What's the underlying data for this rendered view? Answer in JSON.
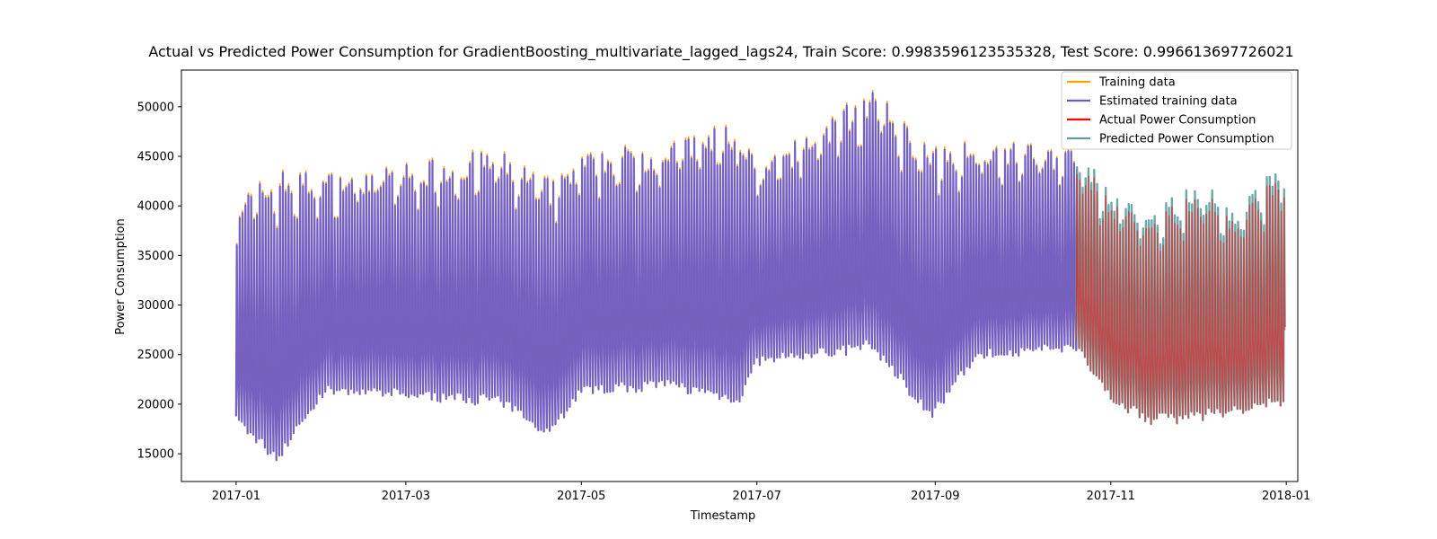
{
  "chart_data": {
    "type": "line",
    "title": "Actual vs Predicted Power Consumption for GradientBoosting_multivariate_lagged_lags24, Train Score: 0.9983596123535328, Test Score: 0.996613697726021",
    "xlabel": "Timestamp",
    "ylabel": "Power Consumption",
    "x_ticks": [
      "2017-01",
      "2017-03",
      "2017-05",
      "2017-07",
      "2017-09",
      "2017-11",
      "2018-01"
    ],
    "y_ticks": [
      15000,
      20000,
      25000,
      30000,
      35000,
      40000,
      45000,
      50000
    ],
    "xlim": [
      "2016-12-13",
      "2018-01-05"
    ],
    "ylim": [
      12200,
      53700
    ],
    "legend_position": "top-right",
    "grid": false,
    "train_range": [
      "2017-01-01",
      "2017-10-20"
    ],
    "test_range": [
      "2017-10-20",
      "2017-12-31"
    ],
    "series": [
      {
        "name": "Training data",
        "color": "#ffa500",
        "segment": "train",
        "daily_envelope": {
          "dates": [
            "2017-01-01",
            "2017-01-15",
            "2017-02-01",
            "2017-03-01",
            "2017-04-01",
            "2017-04-20",
            "2017-05-01",
            "2017-06-01",
            "2017-06-25",
            "2017-07-01",
            "2017-08-01",
            "2017-08-10",
            "2017-08-31",
            "2017-09-15",
            "2017-10-01",
            "2017-10-20"
          ],
          "daily_max": [
            41000,
            44000,
            43500,
            44500,
            46000,
            43000,
            45500,
            47000,
            49000,
            44000,
            50500,
            52000,
            46000,
            47000,
            46500,
            46000
          ],
          "daily_min": [
            18000,
            14000,
            21000,
            20500,
            20000,
            16800,
            21000,
            21500,
            20000,
            24000,
            25000,
            25500,
            18300,
            24500,
            25000,
            25500
          ]
        }
      },
      {
        "name": "Estimated training data",
        "color": "#6a5acd",
        "segment": "train"
      },
      {
        "name": "Actual Power Consumption",
        "color": "#ff0000",
        "segment": "test",
        "daily_envelope": {
          "dates": [
            "2017-10-20",
            "2017-11-01",
            "2017-11-15",
            "2017-12-01",
            "2017-12-15",
            "2017-12-31"
          ],
          "daily_max": [
            46000,
            41000,
            40000,
            42000,
            40000,
            44000
          ],
          "daily_min": [
            25500,
            20000,
            18000,
            18500,
            19000,
            20000
          ]
        }
      },
      {
        "name": "Predicted Power Consumption",
        "color": "#5f9ea0",
        "segment": "test"
      }
    ]
  }
}
